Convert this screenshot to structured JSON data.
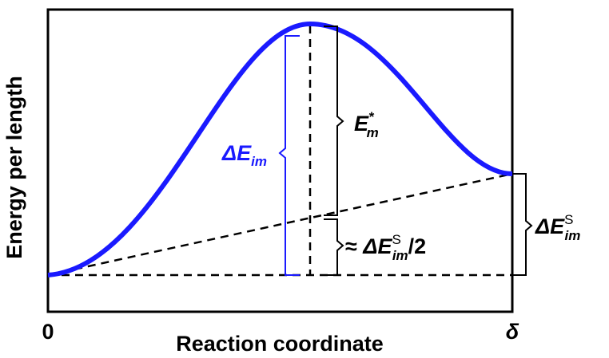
{
  "axes": {
    "y_label": "Energy per length",
    "x_label": "Reaction coordinate",
    "x_start": "0",
    "x_end": "δ"
  },
  "labels": {
    "barrier": {
      "base": "ΔE",
      "sub": "im"
    },
    "migration": {
      "base": "E",
      "sup": "*",
      "sub": "m"
    },
    "half_strain": {
      "prefix": "≈ ",
      "base": "ΔE",
      "sup": "S",
      "sub": "im",
      "suffix": "/2"
    },
    "strain": {
      "base": "ΔE",
      "sup": "S",
      "sub": "im"
    }
  }
}
